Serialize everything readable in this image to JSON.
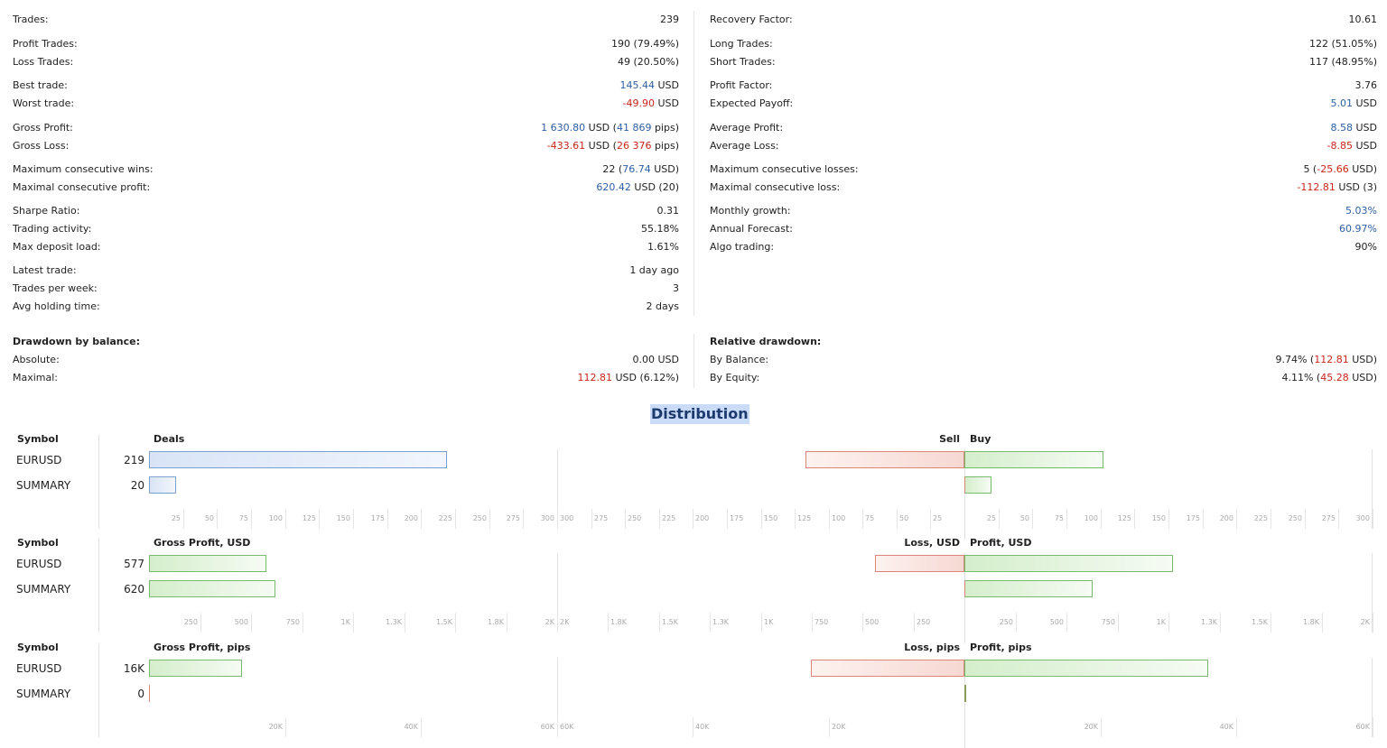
{
  "stats_left": [
    {
      "label": "Trades:",
      "value": [
        {
          "t": "239"
        }
      ]
    },
    {
      "label": "Profit Trades:",
      "value": [
        {
          "t": "190 (79.49%)"
        }
      ]
    },
    {
      "label": "Loss Trades:",
      "value": [
        {
          "t": "49 (20.50%)"
        }
      ]
    },
    {
      "label": "Best trade:",
      "value": [
        {
          "t": "145.44",
          "c": "blue"
        },
        {
          "t": " USD"
        }
      ]
    },
    {
      "label": "Worst trade:",
      "value": [
        {
          "t": "-49.90",
          "c": "red"
        },
        {
          "t": " USD"
        }
      ]
    },
    {
      "label": "Gross Profit:",
      "value": [
        {
          "t": "1 630.80",
          "c": "blue"
        },
        {
          "t": " USD ("
        },
        {
          "t": "41 869",
          "c": "blue"
        },
        {
          "t": " pips)"
        }
      ]
    },
    {
      "label": "Gross Loss:",
      "value": [
        {
          "t": "-433.61",
          "c": "red"
        },
        {
          "t": " USD ("
        },
        {
          "t": "26 376",
          "c": "red"
        },
        {
          "t": " pips)"
        }
      ]
    },
    {
      "label": "Maximum consecutive wins:",
      "value": [
        {
          "t": "22 ("
        },
        {
          "t": "76.74",
          "c": "blue"
        },
        {
          "t": " USD)"
        }
      ]
    },
    {
      "label": "Maximal consecutive profit:",
      "value": [
        {
          "t": "620.42",
          "c": "blue"
        },
        {
          "t": " USD (20)"
        }
      ]
    },
    {
      "label": "Sharpe Ratio:",
      "value": [
        {
          "t": "0.31"
        }
      ]
    },
    {
      "label": "Trading activity:",
      "value": [
        {
          "t": "55.18%"
        }
      ]
    },
    {
      "label": "Max deposit load:",
      "value": [
        {
          "t": "1.61%"
        }
      ]
    },
    {
      "label": "Latest trade:",
      "value": [
        {
          "t": "1 day ago"
        }
      ]
    },
    {
      "label": "Trades per week:",
      "value": [
        {
          "t": "3"
        }
      ]
    },
    {
      "label": "Avg holding time:",
      "value": [
        {
          "t": "2 days"
        }
      ]
    }
  ],
  "stats_right": [
    {
      "label": "Recovery Factor:",
      "value": [
        {
          "t": "10.61"
        }
      ]
    },
    {
      "label": "Long Trades:",
      "value": [
        {
          "t": "122 (51.05%)"
        }
      ]
    },
    {
      "label": "Short Trades:",
      "value": [
        {
          "t": "117 (48.95%)"
        }
      ]
    },
    {
      "label": "Profit Factor:",
      "value": [
        {
          "t": "3.76"
        }
      ]
    },
    {
      "label": "Expected Payoff:",
      "value": [
        {
          "t": "5.01",
          "c": "blue"
        },
        {
          "t": " USD"
        }
      ]
    },
    {
      "label": "Average Profit:",
      "value": [
        {
          "t": "8.58",
          "c": "blue"
        },
        {
          "t": " USD"
        }
      ]
    },
    {
      "label": "Average Loss:",
      "value": [
        {
          "t": "-8.85",
          "c": "red"
        },
        {
          "t": " USD"
        }
      ]
    },
    {
      "label": "Maximum consecutive losses:",
      "value": [
        {
          "t": "5 ("
        },
        {
          "t": "-25.66",
          "c": "red"
        },
        {
          "t": " USD)"
        }
      ]
    },
    {
      "label": "Maximal consecutive loss:",
      "value": [
        {
          "t": "-112.81",
          "c": "red"
        },
        {
          "t": " USD (3)"
        }
      ]
    },
    {
      "label": "Monthly growth:",
      "value": [
        {
          "t": "5.03%",
          "c": "blue"
        }
      ]
    },
    {
      "label": "Annual Forecast:",
      "value": [
        {
          "t": "60.97%",
          "c": "blue"
        }
      ]
    },
    {
      "label": "Algo trading:",
      "value": [
        {
          "t": "90%"
        }
      ]
    }
  ],
  "drawdown_left": {
    "title": "Drawdown by balance:",
    "rows": [
      {
        "label": "Absolute:",
        "value": [
          {
            "t": "0.00 USD"
          }
        ]
      },
      {
        "label": "Maximal:",
        "value": [
          {
            "t": "112.81",
            "c": "red"
          },
          {
            "t": " USD (6.12%)"
          }
        ]
      }
    ]
  },
  "drawdown_right": {
    "title": "Relative drawdown:",
    "rows": [
      {
        "label": "By Balance:",
        "value": [
          {
            "t": "9.74% ("
          },
          {
            "t": "112.81",
            "c": "red"
          },
          {
            "t": " USD)"
          }
        ]
      },
      {
        "label": "By Equity:",
        "value": [
          {
            "t": "4.11% ("
          },
          {
            "t": "45.28",
            "c": "red"
          },
          {
            "t": " USD)"
          }
        ]
      }
    ]
  },
  "distribution_title": "Distribution",
  "chart_data": [
    {
      "type": "bar",
      "symbol_header": "Symbol",
      "left_title": "Deals",
      "sell_title": "Sell",
      "buy_title": "Buy",
      "symbols": [
        "EURUSD",
        "SUMMARY"
      ],
      "counts": [
        "219",
        "20"
      ],
      "left_values": [
        219,
        20
      ],
      "left_max": 300,
      "left_ticks": [
        "25",
        "50",
        "75",
        "100",
        "125",
        "150",
        "175",
        "200",
        "225",
        "250",
        "275",
        "300"
      ],
      "sell_values": [
        117,
        0
      ],
      "buy_values": [
        102,
        20
      ],
      "right_max": 300,
      "sell_ticks": [
        "300",
        "275",
        "250",
        "225",
        "200",
        "175",
        "150",
        "125",
        "100",
        "75",
        "50",
        "25"
      ],
      "buy_ticks": [
        "25",
        "50",
        "75",
        "100",
        "125",
        "150",
        "175",
        "200",
        "225",
        "250",
        "275",
        "300"
      ],
      "colors": {
        "left": "blue",
        "sell": "red",
        "buy": "green"
      }
    },
    {
      "type": "bar",
      "symbol_header": "Symbol",
      "left_title": "Gross Profit, USD",
      "sell_title": "Loss, USD",
      "buy_title": "Profit, USD",
      "symbols": [
        "EURUSD",
        "SUMMARY"
      ],
      "counts": [
        "577",
        "620"
      ],
      "left_values": [
        577,
        620
      ],
      "left_max": 2000,
      "left_ticks": [
        "250",
        "500",
        "750",
        "1K",
        "1.3K",
        "1.5K",
        "1.8K",
        "2K"
      ],
      "sell_values": [
        440,
        0
      ],
      "buy_values": [
        1020,
        630
      ],
      "right_max": 2000,
      "sell_ticks": [
        "2K",
        "1.8K",
        "1.5K",
        "1.3K",
        "1K",
        "750",
        "500",
        "250"
      ],
      "buy_ticks": [
        "250",
        "500",
        "750",
        "1K",
        "1.3K",
        "1.5K",
        "1.8K",
        "2K"
      ],
      "colors": {
        "left": "green",
        "sell": "red",
        "buy": "green"
      }
    },
    {
      "type": "bar",
      "symbol_header": "Symbol",
      "left_title": "Gross Profit, pips",
      "sell_title": "Loss, pips",
      "buy_title": "Profit, pips",
      "symbols": [
        "EURUSD",
        "SUMMARY"
      ],
      "counts": [
        "16K",
        "0"
      ],
      "left_values": [
        16000,
        0
      ],
      "left_max": 70000,
      "left_ticks": [
        "20K",
        "40K",
        "60K"
      ],
      "sell_values": [
        26376,
        0
      ],
      "buy_values": [
        41869,
        0
      ],
      "right_max": 70000,
      "sell_ticks": [
        "60K",
        "40K",
        "20K"
      ],
      "buy_ticks": [
        "20K",
        "40K",
        "60K"
      ],
      "colors": {
        "left": "green",
        "sell": "red",
        "buy": "green"
      }
    }
  ]
}
